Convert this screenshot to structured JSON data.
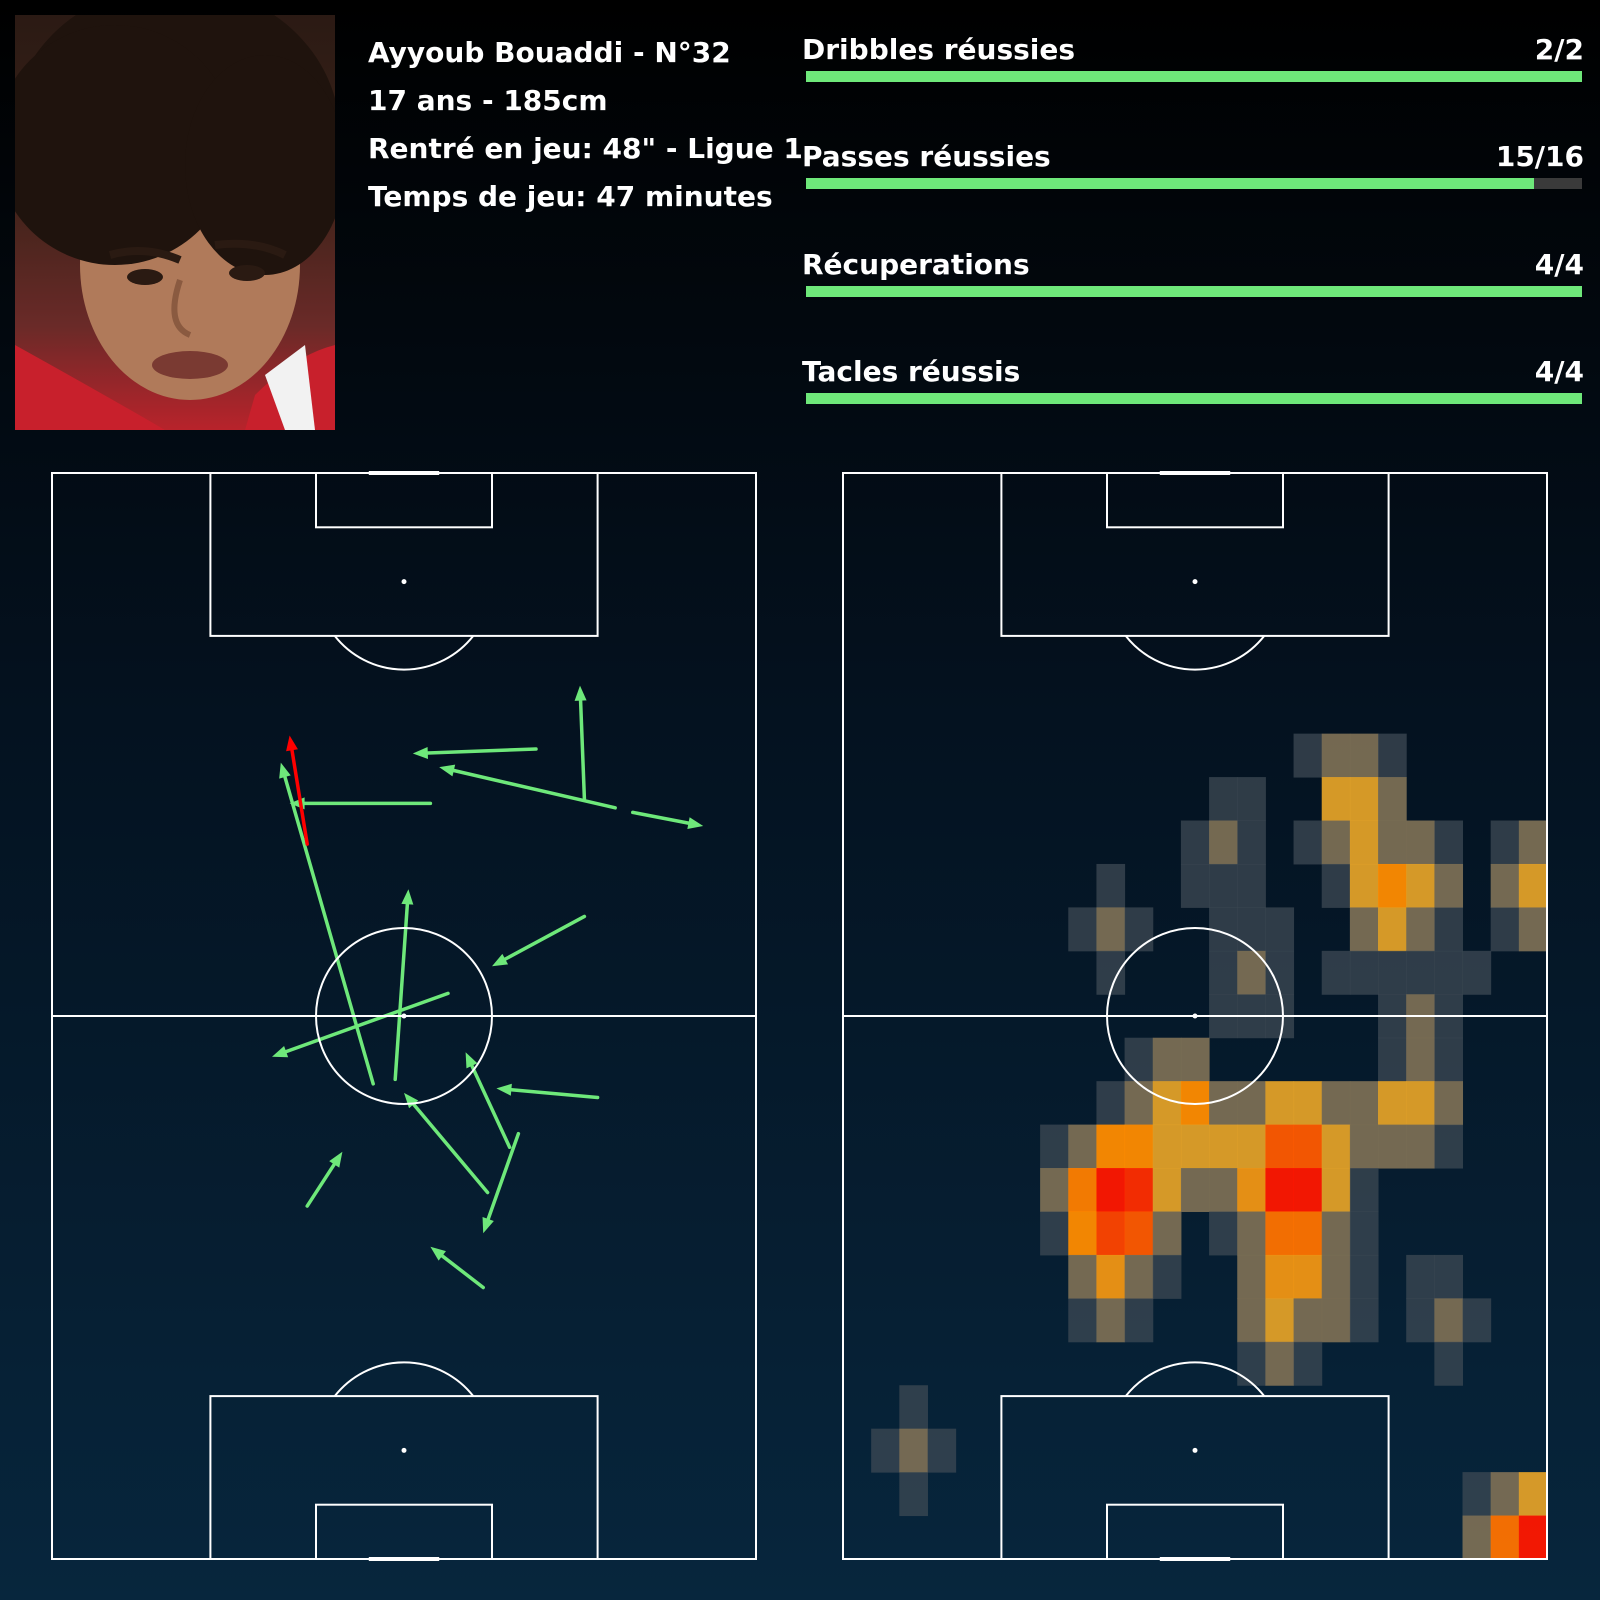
{
  "player": {
    "name_line": "Ayyoub Bouaddi - N°32",
    "age_height": "17 ans - 185cm",
    "entry": "Rentré en jeu: 48\" - Ligue 1",
    "playing_time": "Temps de jeu: 47 minutes"
  },
  "stats": [
    {
      "label": "Dribbles réussies",
      "display": "2/2",
      "success": 2,
      "total": 2
    },
    {
      "label": "Passes réussies",
      "display": "15/16",
      "success": 15,
      "total": 16
    },
    {
      "label": "Récuperations",
      "display": "4/4",
      "success": 4,
      "total": 4
    },
    {
      "label": "Tacles réussis",
      "display": "4/4",
      "success": 4,
      "total": 4
    }
  ],
  "colors": {
    "success": "#6ee87a",
    "fail": "#ff0000",
    "bar_track": "#3a3a3a",
    "lines": "#ffffff"
  },
  "chart_data": [
    {
      "type": "scatter",
      "subtype": "pass-map",
      "pitch": {
        "length": 120,
        "width": 80,
        "orientation": "vertical",
        "attack": "up"
      },
      "passes": [
        {
          "x1": 36.5,
          "y1": 52.5,
          "x2": 26,
          "y2": 88,
          "success": true
        },
        {
          "x1": 39,
          "y1": 53,
          "x2": 40.5,
          "y2": 74,
          "success": true
        },
        {
          "x1": 45,
          "y1": 62.5,
          "x2": 25,
          "y2": 55.5,
          "success": true
        },
        {
          "x1": 60.5,
          "y1": 84,
          "x2": 60,
          "y2": 96.5,
          "success": true
        },
        {
          "x1": 55,
          "y1": 89.5,
          "x2": 41,
          "y2": 89,
          "success": true
        },
        {
          "x1": 64,
          "y1": 83,
          "x2": 44,
          "y2": 87.5,
          "success": true
        },
        {
          "x1": 43,
          "y1": 83.5,
          "x2": 27,
          "y2": 83.5,
          "success": true
        },
        {
          "x1": 66,
          "y1": 82.5,
          "x2": 74,
          "y2": 81,
          "success": true
        },
        {
          "x1": 60.5,
          "y1": 71,
          "x2": 50,
          "y2": 65.5,
          "success": true
        },
        {
          "x1": 62,
          "y1": 51,
          "x2": 50.5,
          "y2": 52,
          "success": true
        },
        {
          "x1": 52,
          "y1": 45.5,
          "x2": 47,
          "y2": 56,
          "success": true
        },
        {
          "x1": 49.5,
          "y1": 40.5,
          "x2": 40,
          "y2": 51.5,
          "success": true
        },
        {
          "x1": 53,
          "y1": 47,
          "x2": 49,
          "y2": 36,
          "success": true
        },
        {
          "x1": 29,
          "y1": 39,
          "x2": 33,
          "y2": 45,
          "success": true
        },
        {
          "x1": 49,
          "y1": 30,
          "x2": 43,
          "y2": 34.5,
          "success": true
        },
        {
          "x1": 29,
          "y1": 79,
          "x2": 27,
          "y2": 91,
          "success": false
        }
      ]
    },
    {
      "type": "heatmap",
      "pitch": {
        "length": 120,
        "width": 80,
        "orientation": "vertical",
        "attack": "up"
      },
      "grid": {
        "cols": 25,
        "rows": 25
      },
      "legend": "none",
      "cells": [
        [
          16,
          6,
          0.8
        ],
        [
          17,
          6,
          2.5
        ],
        [
          18,
          6,
          2.5
        ],
        [
          19,
          6,
          0.8
        ],
        [
          13,
          7,
          0.8
        ],
        [
          14,
          7,
          0.8
        ],
        [
          17,
          7,
          4
        ],
        [
          18,
          7,
          4
        ],
        [
          19,
          7,
          2.5
        ],
        [
          12,
          8,
          0.8
        ],
        [
          13,
          8,
          2.5
        ],
        [
          14,
          8,
          0.8
        ],
        [
          16,
          8,
          0.8
        ],
        [
          17,
          8,
          2.5
        ],
        [
          18,
          8,
          4
        ],
        [
          19,
          8,
          2.5
        ],
        [
          20,
          8,
          2.5
        ],
        [
          21,
          8,
          0.8
        ],
        [
          23,
          8,
          0.8
        ],
        [
          24,
          8,
          2.5
        ],
        [
          9,
          9,
          0.8
        ],
        [
          12,
          9,
          0.8
        ],
        [
          13,
          9,
          0.8
        ],
        [
          14,
          9,
          0.8
        ],
        [
          17,
          9,
          0.8
        ],
        [
          18,
          9,
          4
        ],
        [
          19,
          9,
          6
        ],
        [
          20,
          9,
          4
        ],
        [
          21,
          9,
          2.5
        ],
        [
          23,
          9,
          2.5
        ],
        [
          24,
          9,
          4
        ],
        [
          8,
          10,
          0.8
        ],
        [
          9,
          10,
          2.5
        ],
        [
          10,
          10,
          0.8
        ],
        [
          13,
          10,
          0.8
        ],
        [
          14,
          10,
          0.8
        ],
        [
          15,
          10,
          0.8
        ],
        [
          18,
          10,
          2.5
        ],
        [
          19,
          10,
          4
        ],
        [
          20,
          10,
          2.5
        ],
        [
          21,
          10,
          0.8
        ],
        [
          23,
          10,
          0.8
        ],
        [
          24,
          10,
          2.5
        ],
        [
          9,
          11,
          0.8
        ],
        [
          13,
          11,
          0.8
        ],
        [
          14,
          11,
          2.5
        ],
        [
          15,
          11,
          0.8
        ],
        [
          17,
          11,
          0.8
        ],
        [
          18,
          11,
          0.8
        ],
        [
          19,
          11,
          0.8
        ],
        [
          20,
          11,
          0.8
        ],
        [
          21,
          11,
          0.8
        ],
        [
          22,
          11,
          0.8
        ],
        [
          13,
          12,
          0.8
        ],
        [
          14,
          12,
          0.8
        ],
        [
          15,
          12,
          0.8
        ],
        [
          19,
          12,
          0.8
        ],
        [
          20,
          12,
          2.5
        ],
        [
          21,
          12,
          0.8
        ],
        [
          10,
          13,
          0.8
        ],
        [
          11,
          13,
          2.5
        ],
        [
          12,
          13,
          2.5
        ],
        [
          19,
          13,
          0.8
        ],
        [
          20,
          13,
          2.5
        ],
        [
          21,
          13,
          0.8
        ],
        [
          9,
          14,
          0.8
        ],
        [
          10,
          14,
          2.5
        ],
        [
          11,
          14,
          4
        ],
        [
          12,
          14,
          6
        ],
        [
          13,
          14,
          2.5
        ],
        [
          14,
          14,
          2.5
        ],
        [
          15,
          14,
          4
        ],
        [
          16,
          14,
          4
        ],
        [
          17,
          14,
          2.5
        ],
        [
          18,
          14,
          2.5
        ],
        [
          19,
          14,
          4
        ],
        [
          20,
          14,
          4
        ],
        [
          21,
          14,
          2.5
        ],
        [
          7,
          15,
          0.8
        ],
        [
          8,
          15,
          2.5
        ],
        [
          9,
          15,
          6
        ],
        [
          10,
          15,
          6
        ],
        [
          11,
          15,
          4
        ],
        [
          12,
          15,
          4
        ],
        [
          13,
          15,
          4
        ],
        [
          14,
          15,
          4
        ],
        [
          15,
          15,
          8
        ],
        [
          16,
          15,
          8
        ],
        [
          17,
          15,
          4
        ],
        [
          18,
          15,
          2.5
        ],
        [
          19,
          15,
          2.5
        ],
        [
          20,
          15,
          2.5
        ],
        [
          21,
          15,
          0.8
        ],
        [
          7,
          16,
          2.5
        ],
        [
          8,
          16,
          6.5
        ],
        [
          9,
          16,
          9.5
        ],
        [
          10,
          16,
          9
        ],
        [
          11,
          16,
          4
        ],
        [
          12,
          16,
          2.5
        ],
        [
          13,
          16,
          2.5
        ],
        [
          14,
          16,
          5
        ],
        [
          15,
          16,
          9.5
        ],
        [
          16,
          16,
          9.5
        ],
        [
          17,
          16,
          4
        ],
        [
          18,
          16,
          0.8
        ],
        [
          7,
          17,
          0.8
        ],
        [
          8,
          17,
          6
        ],
        [
          9,
          17,
          8.5
        ],
        [
          10,
          17,
          8
        ],
        [
          11,
          17,
          2.5
        ],
        [
          13,
          17,
          0.8
        ],
        [
          14,
          17,
          2.5
        ],
        [
          15,
          17,
          7
        ],
        [
          16,
          17,
          7
        ],
        [
          17,
          17,
          2.5
        ],
        [
          18,
          17,
          0.8
        ],
        [
          8,
          18,
          2.5
        ],
        [
          9,
          18,
          5
        ],
        [
          10,
          18,
          2.5
        ],
        [
          11,
          18,
          0.8
        ],
        [
          14,
          18,
          2.5
        ],
        [
          15,
          18,
          5
        ],
        [
          16,
          18,
          5
        ],
        [
          17,
          18,
          2.5
        ],
        [
          18,
          18,
          0.8
        ],
        [
          20,
          18,
          0.8
        ],
        [
          21,
          18,
          0.8
        ],
        [
          8,
          19,
          0.8
        ],
        [
          9,
          19,
          2.5
        ],
        [
          10,
          19,
          0.8
        ],
        [
          14,
          19,
          2.5
        ],
        [
          15,
          19,
          4
        ],
        [
          16,
          19,
          2.5
        ],
        [
          17,
          19,
          2.5
        ],
        [
          18,
          19,
          0.8
        ],
        [
          20,
          19,
          0.8
        ],
        [
          21,
          19,
          2.5
        ],
        [
          22,
          19,
          0.8
        ],
        [
          14,
          20,
          0.8
        ],
        [
          15,
          20,
          2.5
        ],
        [
          16,
          20,
          0.8
        ],
        [
          21,
          20,
          0.8
        ],
        [
          2,
          21,
          0.8
        ],
        [
          1,
          22,
          0.8
        ],
        [
          2,
          22,
          2.5
        ],
        [
          3,
          22,
          0.8
        ],
        [
          2,
          23,
          0.8
        ],
        [
          22,
          23,
          0.8
        ],
        [
          23,
          23,
          2.5
        ],
        [
          24,
          23,
          4
        ],
        [
          22,
          24,
          2.5
        ],
        [
          23,
          24,
          7
        ],
        [
          24,
          24,
          9.5
        ]
      ]
    }
  ]
}
